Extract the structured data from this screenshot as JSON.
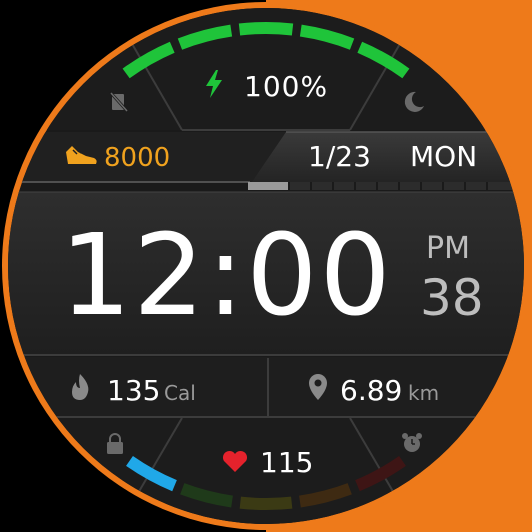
{
  "battery": {
    "value": "100%",
    "level_percent": 100
  },
  "steps": {
    "value": "8000",
    "color": "#f0a21e"
  },
  "date": {
    "text": "1/23",
    "weekday": "MON"
  },
  "time": {
    "hhmm": "12:00",
    "ampm": "PM",
    "seconds": "38"
  },
  "calories": {
    "value": "135",
    "unit": "Cal"
  },
  "distance": {
    "value": "6.89",
    "unit": "km"
  },
  "heart_rate": {
    "value": "115",
    "color": "#e5222c"
  },
  "icons": {
    "top_left": "no-disturb-icon",
    "top_right": "moon-icon",
    "battery": "lightning-icon",
    "steps": "shoe-icon",
    "calories": "flame-icon",
    "distance": "location-pin-icon",
    "bottom_left": "lock-icon",
    "bottom_right": "alarm-clock-icon",
    "heart": "heart-icon"
  },
  "colors": {
    "accent_ring": "#ee7a1a",
    "battery_arc": "#1fc43a",
    "heart_arc_active": "#20a8e8",
    "text": "#ffffff",
    "secondary_text": "#bdbdbd"
  }
}
